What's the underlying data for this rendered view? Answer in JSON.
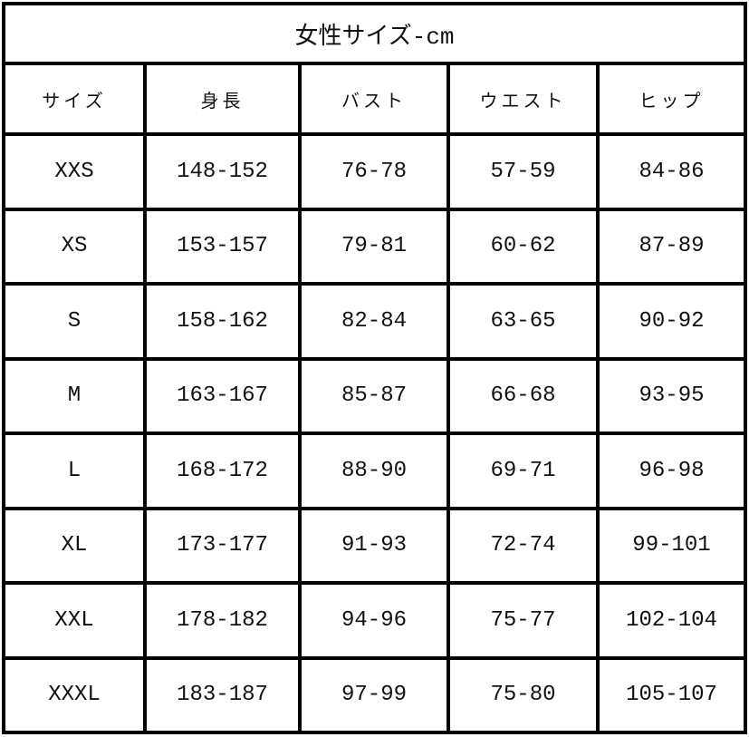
{
  "title": "女性サイズ-cm",
  "headers": [
    "サイズ",
    "身長",
    "バスト",
    "ウエスト",
    "ヒップ"
  ],
  "rows": [
    [
      "XXS",
      "148-152",
      "76-78",
      "57-59",
      "84-86"
    ],
    [
      "XS",
      "153-157",
      "79-81",
      "60-62",
      "87-89"
    ],
    [
      "S",
      "158-162",
      "82-84",
      "63-65",
      "90-92"
    ],
    [
      "M",
      "163-167",
      "85-87",
      "66-68",
      "93-95"
    ],
    [
      "L",
      "168-172",
      "88-90",
      "69-71",
      "96-98"
    ],
    [
      "XL",
      "173-177",
      "91-93",
      "72-74",
      "99-101"
    ],
    [
      "XXL",
      "178-182",
      "94-96",
      "75-77",
      "102-104"
    ],
    [
      "XXXL",
      "183-187",
      "97-99",
      "75-80",
      "105-107"
    ]
  ]
}
